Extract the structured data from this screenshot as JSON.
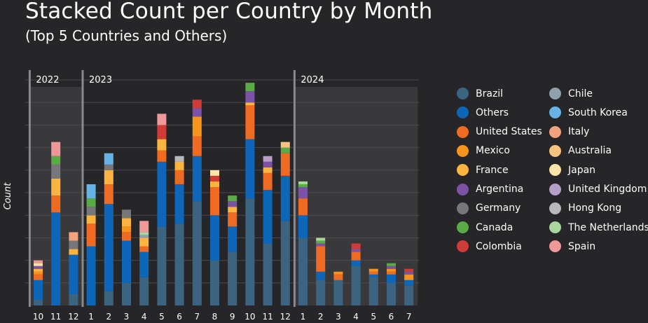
{
  "chart_data": {
    "type": "bar",
    "stacked": true,
    "title": "Stacked Count per Country by Month",
    "subtitle": "(Top 5 Countries and Others)",
    "ylabel": "Count",
    "xlabel": "",
    "ylim": [
      0,
      84
    ],
    "grid": true,
    "legend_position": "right",
    "year_groups": [
      {
        "label": "2022",
        "start": 0,
        "end": 2
      },
      {
        "label": "2023",
        "start": 3,
        "end": 14
      },
      {
        "label": "2024",
        "start": 15,
        "end": 21
      }
    ],
    "categories": [
      "10",
      "11",
      "12",
      "1",
      "2",
      "3",
      "4",
      "5",
      "6",
      "7",
      "8",
      "9",
      "10",
      "11",
      "12",
      "1",
      "2",
      "3",
      "4",
      "5",
      "6",
      "7"
    ],
    "series": [
      {
        "name": "Brazil",
        "color": "#3c6481",
        "values": [
          2,
          0,
          4,
          0,
          5,
          8,
          10,
          28,
          29,
          37,
          16,
          19,
          38,
          22,
          30,
          24,
          9,
          9,
          14,
          10,
          8,
          7
        ]
      },
      {
        "name": "Others",
        "color": "#0e66b8",
        "values": [
          7,
          33,
          14,
          21,
          31,
          15,
          9,
          23,
          14,
          16,
          16,
          9,
          21,
          19,
          16,
          8,
          3,
          0,
          2,
          1,
          3,
          2
        ]
      },
      {
        "name": "United States",
        "color": "#f06b22",
        "values": [
          2,
          6,
          0,
          8,
          7,
          3,
          2,
          4,
          5,
          7,
          10,
          5,
          12,
          6,
          8,
          6,
          9,
          2,
          3,
          1,
          1,
          0
        ]
      },
      {
        "name": "Mexico",
        "color": "#f7941c",
        "values": [
          1,
          0,
          0,
          0,
          0,
          2,
          0,
          0,
          0,
          7,
          0,
          0,
          0,
          0,
          0,
          0,
          0,
          1,
          0,
          1,
          1,
          2
        ]
      },
      {
        "name": "France",
        "color": "#fbb43f",
        "values": [
          1,
          6,
          2,
          3,
          5,
          3,
          3,
          4,
          3,
          0,
          2,
          2,
          1,
          2,
          0,
          0,
          0,
          0,
          0,
          0,
          0,
          0
        ]
      },
      {
        "name": "Argentina",
        "color": "#7b53a6",
        "values": [
          1,
          0,
          0,
          0,
          0,
          0,
          0,
          0,
          0,
          3,
          0,
          2,
          4,
          2,
          0,
          4,
          1,
          0,
          1,
          0,
          1,
          1
        ]
      },
      {
        "name": "Germany",
        "color": "#777779",
        "values": [
          0,
          5,
          3,
          3,
          2,
          3,
          0,
          0,
          0,
          0,
          0,
          0,
          0,
          0,
          0,
          0,
          0,
          0,
          0,
          0,
          0,
          0
        ]
      },
      {
        "name": "Canada",
        "color": "#5aab46",
        "values": [
          0,
          3,
          0,
          3,
          0,
          0,
          0,
          0,
          0,
          0,
          0,
          2,
          3,
          0,
          2,
          1,
          1,
          0,
          0,
          0,
          1,
          0
        ]
      },
      {
        "name": "Colombia",
        "color": "#cf3b35",
        "values": [
          0,
          0,
          0,
          0,
          0,
          0,
          0,
          5,
          0,
          3,
          2,
          0,
          0,
          0,
          0,
          0,
          0,
          0,
          2,
          0,
          0,
          1
        ]
      },
      {
        "name": "Chile",
        "color": "#8fa1ad",
        "values": [
          0,
          0,
          0,
          0,
          0,
          0,
          1,
          0,
          0,
          0,
          0,
          0,
          0,
          0,
          0,
          0,
          0,
          0,
          0,
          0,
          0,
          0
        ]
      },
      {
        "name": "South Korea",
        "color": "#66b4e6",
        "values": [
          0,
          0,
          0,
          5,
          4,
          0,
          0,
          0,
          0,
          0,
          0,
          0,
          0,
          0,
          0,
          0,
          0,
          0,
          0,
          0,
          0,
          0
        ]
      },
      {
        "name": "Italy",
        "color": "#f4a37f",
        "values": [
          0,
          0,
          3,
          0,
          0,
          0,
          0,
          0,
          0,
          0,
          0,
          0,
          0,
          0,
          0,
          0,
          0,
          0,
          0,
          0,
          0,
          0
        ]
      },
      {
        "name": "Australia",
        "color": "#f8c37e",
        "values": [
          0,
          0,
          0,
          0,
          0,
          0,
          0,
          0,
          0,
          0,
          0,
          0,
          0,
          0,
          2,
          0,
          0,
          0,
          0,
          0,
          0,
          0
        ]
      },
      {
        "name": "Japan",
        "color": "#fde3a7",
        "values": [
          1,
          0,
          0,
          0,
          0,
          0,
          0,
          0,
          0,
          0,
          2,
          0,
          0,
          0,
          0,
          0,
          0,
          0,
          0,
          0,
          0,
          0
        ]
      },
      {
        "name": "United Kingdom",
        "color": "#b79ec9",
        "values": [
          0,
          0,
          0,
          0,
          0,
          0,
          0,
          0,
          0,
          0,
          0,
          0,
          0,
          2,
          0,
          0,
          0,
          0,
          0,
          0,
          0,
          0
        ]
      },
      {
        "name": "Hong Kong",
        "color": "#b8b8ba",
        "values": [
          0,
          0,
          0,
          0,
          0,
          0,
          0,
          0,
          2,
          0,
          0,
          0,
          0,
          0,
          0,
          0,
          0,
          0,
          0,
          0,
          0,
          0
        ]
      },
      {
        "name": "The Netherlands",
        "color": "#a8d69c",
        "values": [
          0,
          0,
          0,
          0,
          0,
          0,
          1,
          0,
          0,
          0,
          0,
          0,
          0,
          0,
          0,
          1,
          1,
          0,
          0,
          0,
          0,
          0
        ]
      },
      {
        "name": "Spain",
        "color": "#ee9898",
        "values": [
          1,
          5,
          0,
          0,
          0,
          0,
          4,
          4,
          0,
          0,
          0,
          0,
          0,
          0,
          0,
          0,
          0,
          0,
          0,
          0,
          0,
          0
        ]
      }
    ]
  }
}
